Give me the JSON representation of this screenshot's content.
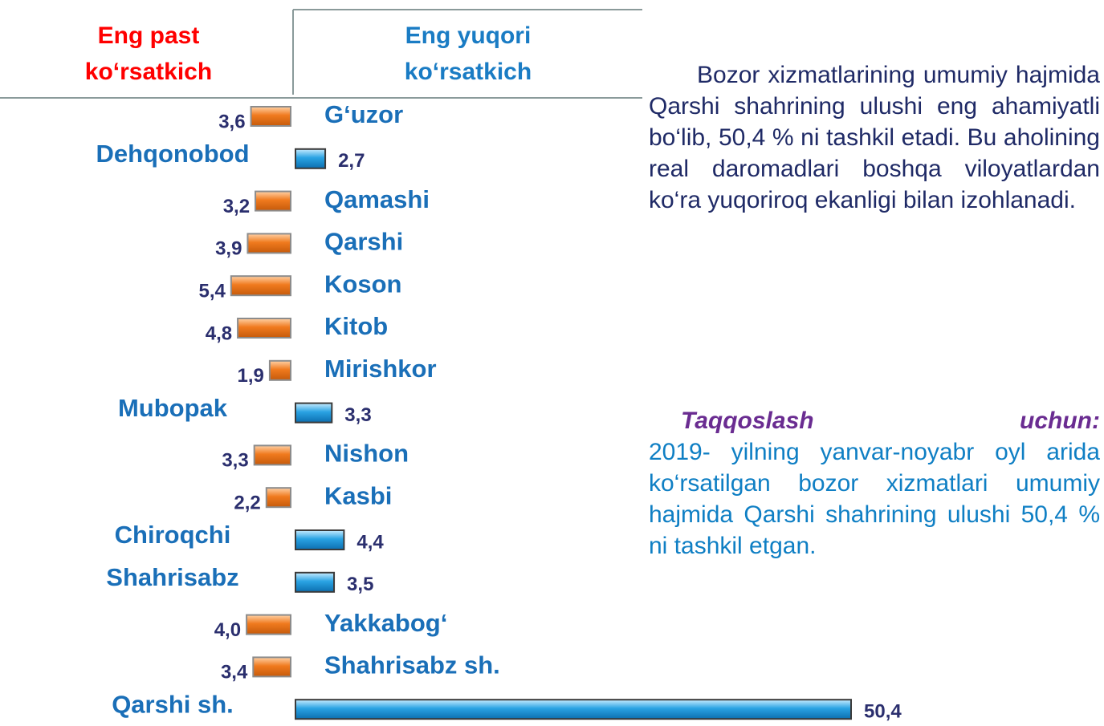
{
  "chart_data": {
    "type": "bar",
    "categories": [
      "G‘uzor",
      "Dehqonobod",
      "Qamashi",
      "Qarshi",
      "Koson",
      "Kitob",
      "Mirishkor",
      "Mubopak",
      "Nishon",
      "Kasbi",
      "Chiroqchi",
      "Shahrisabz",
      "Yakkabog‘",
      "Shahrisabz sh.",
      "Qarshi sh."
    ],
    "series": [
      {
        "name": "Eng past ko‘rsatkich",
        "color": "#f07a1e",
        "values": [
          3.6,
          null,
          3.2,
          3.9,
          5.4,
          4.8,
          1.9,
          null,
          3.3,
          2.2,
          null,
          null,
          4.0,
          3.4,
          null
        ],
        "value_labels": [
          "3,6",
          null,
          "3,2",
          "3,9",
          "5,4",
          "4,8",
          "1,9",
          null,
          "3,3",
          "2,2",
          null,
          null,
          "4,0",
          "3,4",
          null
        ]
      },
      {
        "name": "Eng yuqori ko‘rsatkich",
        "color": "#2aa3e3",
        "values": [
          null,
          2.7,
          null,
          null,
          null,
          null,
          null,
          3.3,
          null,
          null,
          4.4,
          3.5,
          null,
          null,
          50.4
        ],
        "value_labels": [
          null,
          "2,7",
          null,
          null,
          null,
          null,
          null,
          "3,3",
          null,
          null,
          "4,4",
          "3,5",
          null,
          null,
          "50,4"
        ]
      }
    ],
    "xlim": [
      0,
      50.4
    ]
  },
  "text": {
    "paragraph": "Bozor xizmatlarining umumiy hajmida Qarshi shahrining ulushi eng ahamiyatli bo‘lib, 50,4 % ni tashkil etadi. Bu aholining real daromadlari boshqa viloyatlardan ko‘ra yuqoriroq ekanligi bilan izohlanadi.",
    "compare_label": "Taqqoslash uchun:",
    "compare_body": "2019- yilning yanvar-noyabr oyl arida ko‘rsatilgan bozor xizmatlari umumiy hajmida Qarshi shahrining ulushi 50,4 % ni tashkil etgan."
  }
}
